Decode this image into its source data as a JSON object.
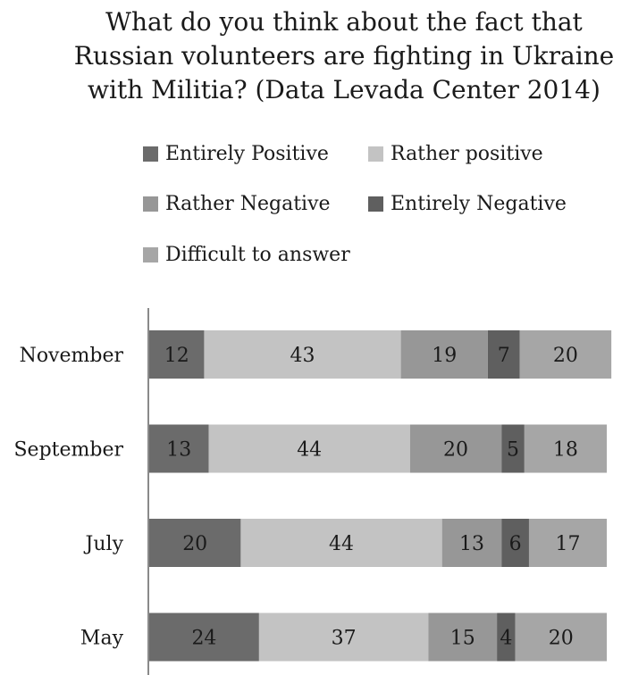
{
  "title_lines": [
    "What do you think about the fact that",
    "Russian volunteers are fighting in Ukraine",
    "with Militia? (Data Levada Center 2014)"
  ],
  "colors": {
    "entirely_positive": "#6b6b6b",
    "rather_positive": "#c3c3c3",
    "rather_negative": "#979797",
    "entirely_negative": "#5f5f5f",
    "difficult": "#a6a6a6",
    "axis": "#8a8a8a",
    "text": "#1a1a1a"
  },
  "chart_data": {
    "type": "bar",
    "orientation": "horizontal",
    "stacked": true,
    "title": "What do you think about the fact that Russian volunteers are fighting in Ukraine with Militia? (Data Levada Center 2014)",
    "categories": [
      "November",
      "September",
      "July",
      "May"
    ],
    "series": [
      {
        "name": "Entirely Positive",
        "color_key": "entirely_positive",
        "values": [
          12,
          13,
          20,
          24
        ]
      },
      {
        "name": "Rather positive",
        "color_key": "rather_positive",
        "values": [
          43,
          44,
          44,
          37
        ]
      },
      {
        "name": "Rather Negative",
        "color_key": "rather_negative",
        "values": [
          19,
          20,
          13,
          15
        ]
      },
      {
        "name": "Entirely Negative",
        "color_key": "entirely_negative",
        "values": [
          7,
          5,
          6,
          4
        ]
      },
      {
        "name": "Difficult to answer",
        "color_key": "difficult",
        "values": [
          20,
          18,
          17,
          20
        ]
      }
    ],
    "data_labels": true,
    "legend_position": "top",
    "grid": false
  }
}
